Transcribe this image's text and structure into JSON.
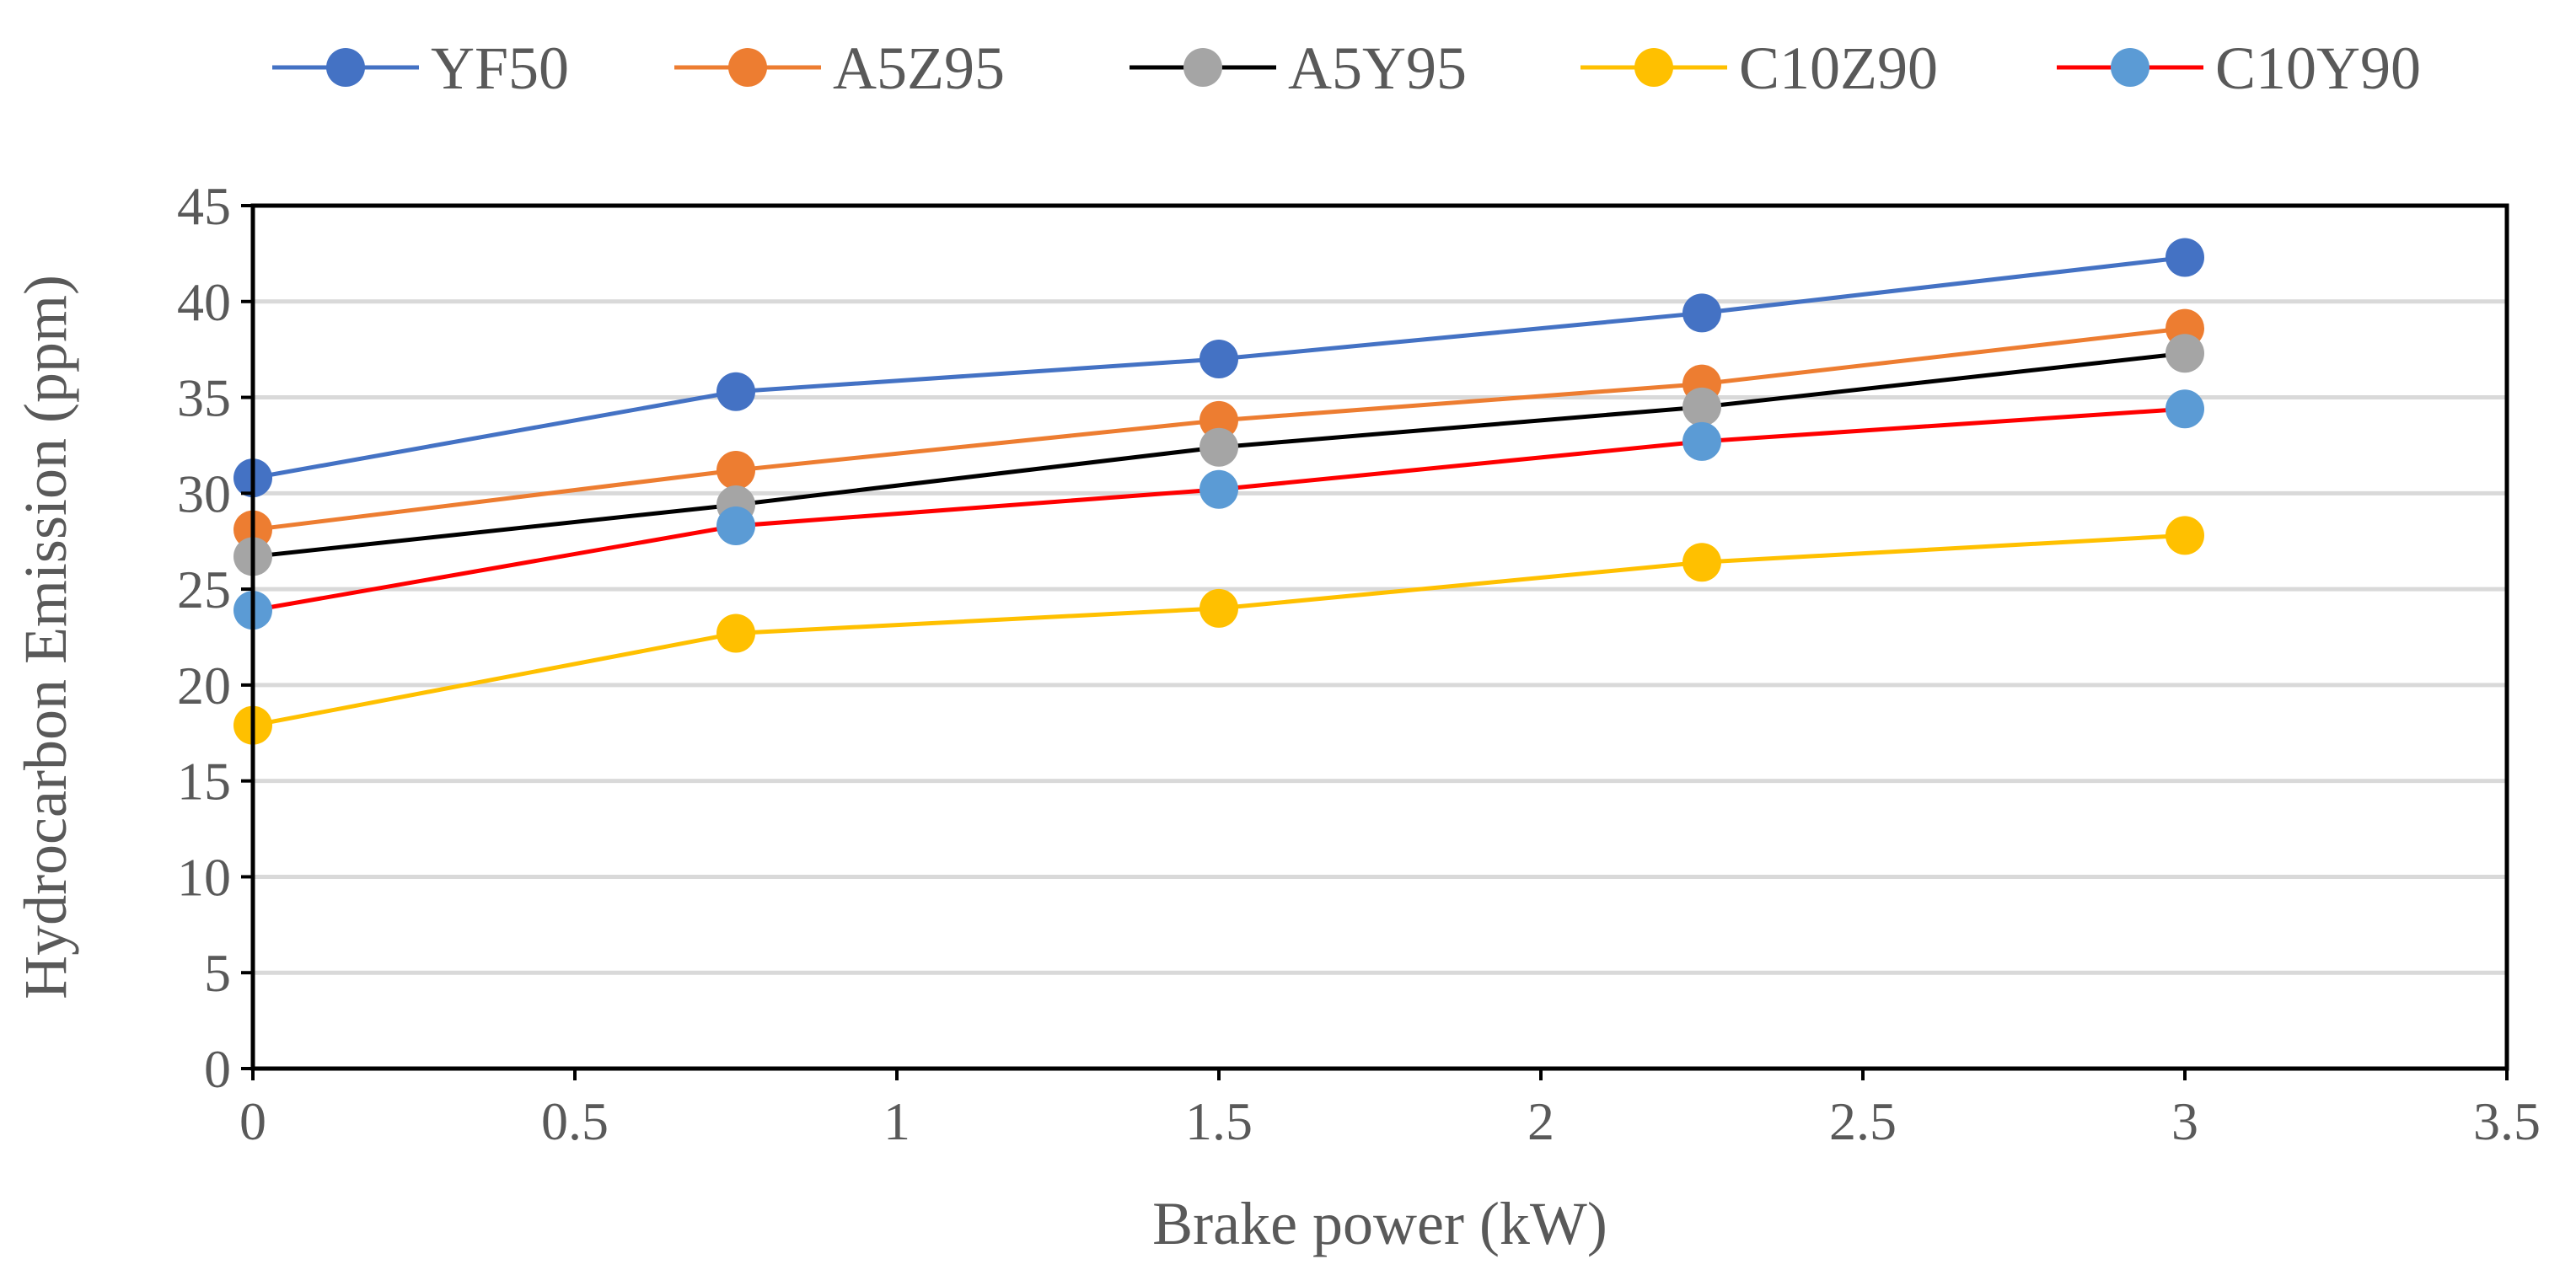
{
  "chart_data": {
    "type": "line",
    "title": "",
    "xlabel": "Brake power (kW)",
    "ylabel": "Hydrocarbon Emission (ppm)",
    "xlim": [
      0,
      3.5
    ],
    "ylim": [
      0,
      45
    ],
    "xticks": [
      0,
      0.5,
      1,
      1.5,
      2,
      2.5,
      3,
      3.5
    ],
    "xtick_labels": [
      "0",
      "0.5",
      "1",
      "1.5",
      "2",
      "2.5",
      "3",
      "3.5"
    ],
    "yticks": [
      0,
      5,
      10,
      15,
      20,
      25,
      30,
      35,
      40,
      45
    ],
    "ytick_labels": [
      "0",
      "5",
      "10",
      "15",
      "20",
      "25",
      "30",
      "35",
      "40",
      "45"
    ],
    "grid": "horizontal",
    "legend_position": "top",
    "x": [
      0,
      0.75,
      1.5,
      2.25,
      3
    ],
    "series": [
      {
        "name": "YF50",
        "line_color": "#4472c4",
        "marker_color": "#4472c4",
        "values": [
          30.8,
          35.3,
          37.0,
          39.4,
          42.3
        ]
      },
      {
        "name": "A5Z95",
        "line_color": "#ed7d31",
        "marker_color": "#ed7d31",
        "values": [
          28.1,
          31.2,
          33.8,
          35.7,
          38.6
        ]
      },
      {
        "name": "A5Y95",
        "line_color": "#000000",
        "marker_color": "#a5a5a5",
        "values": [
          26.7,
          29.4,
          32.4,
          34.5,
          37.3
        ]
      },
      {
        "name": "C10Z90",
        "line_color": "#ffc000",
        "marker_color": "#ffc000",
        "values": [
          17.9,
          22.7,
          24.0,
          26.4,
          27.8
        ]
      },
      {
        "name": "C10Y90",
        "line_color": "#ff0000",
        "marker_color": "#5b9bd5",
        "values": [
          23.9,
          28.3,
          30.2,
          32.7,
          34.4
        ]
      }
    ]
  }
}
